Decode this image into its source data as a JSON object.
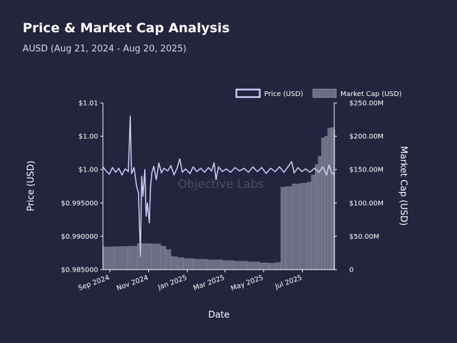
{
  "title": "Price & Market Cap Analysis",
  "subtitle": "AUSD (Aug 21, 2024 - Aug 20, 2025)",
  "watermark": "Objective Labs",
  "colors": {
    "background": "#24243f",
    "price_line": "#c8cdf5",
    "market_cap_bar": "#6d6d85",
    "market_cap_edge": "#8c8ca3",
    "text": "#ffffff"
  },
  "chart_data": {
    "type": "bar+line",
    "xlabel": "Date",
    "ylabel_left": "Price (USD)",
    "ylabel_right": "Market Cap (USD)",
    "legend_position": "top-right",
    "x_range": [
      "2024-08-21",
      "2025-08-20"
    ],
    "y_left_range": [
      0.985,
      1.01
    ],
    "y_right_range": [
      0,
      250000000
    ],
    "x_ticks": [
      {
        "label": "Sep 2024",
        "date": "2024-09-01"
      },
      {
        "label": "Nov 2024",
        "date": "2024-11-01"
      },
      {
        "label": "Jan 2025",
        "date": "2025-01-01"
      },
      {
        "label": "Mar 2025",
        "date": "2025-03-01"
      },
      {
        "label": "May 2025",
        "date": "2025-05-01"
      },
      {
        "label": "Jul 2025",
        "date": "2025-07-01"
      }
    ],
    "y_left_ticks": [
      {
        "label": "$0.985000",
        "value": 0.985
      },
      {
        "label": "$0.990000",
        "value": 0.99
      },
      {
        "label": "$0.995000",
        "value": 0.995
      },
      {
        "label": "$1.00",
        "value": 1.0
      },
      {
        "label": "$1.00",
        "value": 1.005
      },
      {
        "label": "$1.01",
        "value": 1.01
      }
    ],
    "y_right_ticks": [
      {
        "label": "0",
        "value": 0
      },
      {
        "label": "$50.00M",
        "value": 50000000
      },
      {
        "label": "$100.00M",
        "value": 100000000
      },
      {
        "label": "$150.00M",
        "value": 150000000
      },
      {
        "label": "$200.00M",
        "value": 200000000
      },
      {
        "label": "$250.00M",
        "value": 250000000
      }
    ],
    "series": [
      {
        "name": "Price (USD)",
        "kind": "line",
        "axis": "left",
        "points": [
          [
            "2024-08-21",
            1.0004
          ],
          [
            "2024-08-26",
            0.9998
          ],
          [
            "2024-08-31",
            0.9993
          ],
          [
            "2024-09-05",
            1.0003
          ],
          [
            "2024-09-10",
            0.9996
          ],
          [
            "2024-09-15",
            1.0002
          ],
          [
            "2024-09-20",
            0.9992
          ],
          [
            "2024-09-25",
            1.0001
          ],
          [
            "2024-09-30",
            0.9997
          ],
          [
            "2024-10-03",
            1.008
          ],
          [
            "2024-10-05",
            0.9994
          ],
          [
            "2024-10-09",
            1.0003
          ],
          [
            "2024-10-13",
            0.9975
          ],
          [
            "2024-10-16",
            0.9965
          ],
          [
            "2024-10-19",
            0.987
          ],
          [
            "2024-10-21",
            0.999
          ],
          [
            "2024-10-23",
            0.996
          ],
          [
            "2024-10-26",
            1.0
          ],
          [
            "2024-10-28",
            0.993
          ],
          [
            "2024-10-30",
            0.995
          ],
          [
            "2024-11-02",
            0.992
          ],
          [
            "2024-11-04",
            0.9975
          ],
          [
            "2024-11-06",
            0.9995
          ],
          [
            "2024-11-09",
            1.0005
          ],
          [
            "2024-11-13",
            0.9985
          ],
          [
            "2024-11-17",
            1.001
          ],
          [
            "2024-11-21",
            0.9995
          ],
          [
            "2024-11-25",
            1.0002
          ],
          [
            "2024-12-01",
            0.9998
          ],
          [
            "2024-12-06",
            1.0006
          ],
          [
            "2024-12-11",
            0.9992
          ],
          [
            "2024-12-16",
            1.0003
          ],
          [
            "2024-12-20",
            1.0016
          ],
          [
            "2024-12-24",
            0.9996
          ],
          [
            "2024-12-29",
            1.0001
          ],
          [
            "2025-01-05",
            0.9994
          ],
          [
            "2025-01-10",
            1.0004
          ],
          [
            "2025-01-16",
            0.9997
          ],
          [
            "2025-01-22",
            1.0002
          ],
          [
            "2025-01-28",
            0.9996
          ],
          [
            "2025-02-03",
            1.0003
          ],
          [
            "2025-02-08",
            0.9998
          ],
          [
            "2025-02-12",
            1.001
          ],
          [
            "2025-02-15",
            0.9985
          ],
          [
            "2025-02-19",
            1.0004
          ],
          [
            "2025-02-25",
            0.9997
          ],
          [
            "2025-03-03",
            1.0001
          ],
          [
            "2025-03-10",
            0.9996
          ],
          [
            "2025-03-17",
            1.0003
          ],
          [
            "2025-03-24",
            0.9998
          ],
          [
            "2025-03-31",
            1.0002
          ],
          [
            "2025-04-07",
            0.9996
          ],
          [
            "2025-04-14",
            1.0004
          ],
          [
            "2025-04-21",
            0.9997
          ],
          [
            "2025-04-28",
            1.0003
          ],
          [
            "2025-05-05",
            0.9994
          ],
          [
            "2025-05-12",
            1.0002
          ],
          [
            "2025-05-19",
            0.9997
          ],
          [
            "2025-05-26",
            1.0004
          ],
          [
            "2025-06-02",
            0.9996
          ],
          [
            "2025-06-09",
            1.0005
          ],
          [
            "2025-06-14",
            1.0012
          ],
          [
            "2025-06-18",
            0.9995
          ],
          [
            "2025-06-24",
            1.0003
          ],
          [
            "2025-06-30",
            0.9997
          ],
          [
            "2025-07-06",
            1.0001
          ],
          [
            "2025-07-13",
            0.9996
          ],
          [
            "2025-07-20",
            1.0002
          ],
          [
            "2025-07-27",
            0.9996
          ],
          [
            "2025-08-02",
            1.0004
          ],
          [
            "2025-08-08",
            0.9992
          ],
          [
            "2025-08-12",
            1.0007
          ],
          [
            "2025-08-16",
            0.9995
          ],
          [
            "2025-08-20",
            0.9993
          ]
        ]
      },
      {
        "name": "Market Cap (USD)",
        "kind": "bar",
        "axis": "right",
        "points": [
          [
            "2024-08-21",
            34000000
          ],
          [
            "2024-09-08",
            34500000
          ],
          [
            "2024-09-29",
            35000000
          ],
          [
            "2024-10-14",
            39000000
          ],
          [
            "2024-11-05",
            38500000
          ],
          [
            "2024-11-20",
            35000000
          ],
          [
            "2024-11-28",
            30000000
          ],
          [
            "2024-12-06",
            19500000
          ],
          [
            "2024-12-16",
            18000000
          ],
          [
            "2024-12-26",
            16500000
          ],
          [
            "2025-01-10",
            15500000
          ],
          [
            "2025-02-01",
            14500000
          ],
          [
            "2025-02-25",
            13500000
          ],
          [
            "2025-03-15",
            12500000
          ],
          [
            "2025-04-05",
            11500000
          ],
          [
            "2025-04-25",
            10000000
          ],
          [
            "2025-05-10",
            9500000
          ],
          [
            "2025-05-20",
            10500000
          ],
          [
            "2025-05-28",
            123500000
          ],
          [
            "2025-06-05",
            124500000
          ],
          [
            "2025-06-15",
            128500000
          ],
          [
            "2025-06-28",
            129500000
          ],
          [
            "2025-07-08",
            131000000
          ],
          [
            "2025-07-15",
            142000000
          ],
          [
            "2025-07-21",
            157500000
          ],
          [
            "2025-07-26",
            170000000
          ],
          [
            "2025-07-31",
            197500000
          ],
          [
            "2025-08-05",
            200000000
          ],
          [
            "2025-08-10",
            212000000
          ],
          [
            "2025-08-15",
            213000000
          ],
          [
            "2025-08-20",
            209000000
          ]
        ]
      }
    ]
  }
}
